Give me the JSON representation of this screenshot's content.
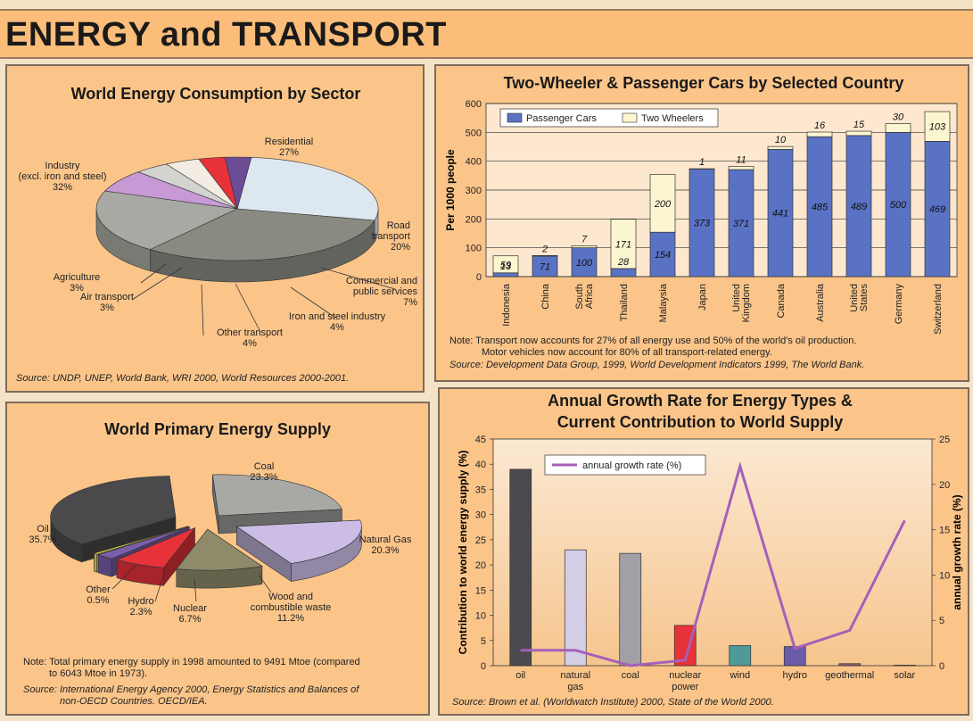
{
  "page": {
    "title": "ENERGY and TRANSPORT"
  },
  "panel_consumption": {
    "title": "World Energy Consumption by Sector",
    "source": "Source: UNDP, UNEP, World Bank, WRI 2000, World Resources 2000-2001.",
    "labels": [
      {
        "key": "residential",
        "lines": [
          "Residential",
          "27%"
        ]
      },
      {
        "key": "industry",
        "lines": [
          "Industry",
          "(excl. iron and steel)",
          "32%"
        ]
      },
      {
        "key": "road",
        "lines": [
          "Road",
          "transport",
          "20%"
        ]
      },
      {
        "key": "commercial",
        "lines": [
          "Commercial and",
          "public services",
          "7%"
        ]
      },
      {
        "key": "iron",
        "lines": [
          "Iron and steel industry",
          "4%"
        ]
      },
      {
        "key": "other-transport",
        "lines": [
          "Other transport",
          "4%"
        ]
      },
      {
        "key": "air",
        "lines": [
          "Air transport",
          "3%"
        ]
      },
      {
        "key": "agriculture",
        "lines": [
          "Agriculture",
          "3%"
        ]
      }
    ]
  },
  "panel_cars": {
    "title": "Two-Wheeler & Passenger Cars by Selected Country",
    "note1": "Note: Transport now accounts for 27% of all energy use and 50% of the world's oil production.",
    "note2": "Motor vehicles now account for 80% of all transport-related energy.",
    "source": "Source: Development Data Group, 1999, World Development Indicators 1999, The World Bank."
  },
  "panel_supply": {
    "title": "World Primary Energy Supply",
    "note1": "Note: Total primary energy supply in 1998 amounted to 9491 Mtoe (compared",
    "note2": "to 6043 Mtoe in 1973).",
    "source1": "Source: International Energy Agency 2000, Energy Statistics and Balances of",
    "source2": "non-OECD Countries. OECD/IEA.",
    "labels": [
      {
        "key": "coal",
        "lines": [
          "Coal",
          "23.3%"
        ]
      },
      {
        "key": "oil",
        "lines": [
          "Oil",
          "35.7%"
        ]
      },
      {
        "key": "natural-gas",
        "lines": [
          "Natural Gas",
          "20.3%"
        ]
      },
      {
        "key": "wood",
        "lines": [
          "Wood and",
          "combustible waste",
          "11.2%"
        ]
      },
      {
        "key": "nuclear",
        "lines": [
          "Nuclear",
          "6.7%"
        ]
      },
      {
        "key": "hydro",
        "lines": [
          "Hydro",
          "2.3%"
        ]
      },
      {
        "key": "other",
        "lines": [
          "Other",
          "0.5%"
        ]
      }
    ]
  },
  "panel_growth": {
    "title_line1": "Annual Growth Rate for Energy Types &",
    "title_line2": "Current Contribution to World Supply",
    "source": "Source: Brown et al. (Worldwatch Institute) 2000, State of the World 2000."
  },
  "chart_data": [
    {
      "type": "pie",
      "title": "World Energy Consumption by Sector",
      "categories": [
        "Residential",
        "Industry (excl. iron and steel)",
        "Road transport",
        "Commercial and public services",
        "Iron and steel industry",
        "Other transport",
        "Air transport",
        "Agriculture"
      ],
      "values": [
        27,
        32,
        20,
        7,
        4,
        4,
        3,
        3
      ],
      "colors": {
        "Residential": "#dde7f0",
        "Industry (excl. iron and steel)": "#8a8a82",
        "Road transport": "#a9a9a3",
        "Commercial and public services": "#c79ad6",
        "Iron and steel industry": "#d3d3d0",
        "Other transport": "#f2ece2",
        "Air transport": "#e8323a",
        "Agriculture": "#6a4c95"
      }
    },
    {
      "type": "bar",
      "title": "Two-Wheeler & Passenger Cars by Selected Country",
      "categories": [
        "Indonesia",
        "China",
        "South Africa",
        "Thailand",
        "Malaysia",
        "Japan",
        "United Kingdom",
        "Canada",
        "Australia",
        "United States",
        "Germany",
        "Switzerland"
      ],
      "series": [
        {
          "name": "Passenger Cars",
          "values": [
            13,
            71,
            100,
            28,
            154,
            373,
            371,
            441,
            485,
            489,
            500,
            469
          ],
          "color": "#5a72c4"
        },
        {
          "name": "Two Wheelers",
          "values": [
            59,
            2,
            7,
            171,
            200,
            1,
            11,
            10,
            16,
            15,
            30,
            103
          ],
          "color": "#fbf6cf"
        }
      ],
      "stacked": true,
      "ylabel": "Per 1000 people",
      "ylim": [
        0,
        600
      ],
      "yticks": [
        0,
        100,
        200,
        300,
        400,
        500,
        600
      ],
      "grid": true,
      "legend": "top-left"
    },
    {
      "type": "pie",
      "title": "World Primary Energy Supply",
      "categories": [
        "Coal",
        "Natural Gas",
        "Wood and combustible waste",
        "Nuclear",
        "Hydro",
        "Other",
        "Oil"
      ],
      "values": [
        23.3,
        20.3,
        11.2,
        6.7,
        2.3,
        0.5,
        35.7
      ],
      "colors": {
        "Coal": "#a8a8a5",
        "Natural Gas": "#cbbde6",
        "Wood and combustible waste": "#8e8a6a",
        "Nuclear": "#e8323a",
        "Hydro": "#7a5eaa",
        "Other": "#f1e64a",
        "Oil": "#4a4a4c"
      }
    },
    {
      "type": "bar",
      "title": "Annual Growth Rate for Energy Types & Current Contribution to World Supply",
      "categories": [
        "oil",
        "natural gas",
        "coal",
        "nuclear power",
        "wind",
        "hydro",
        "geothermal",
        "solar"
      ],
      "series": [
        {
          "name": "Contribution to world energy supply (%)",
          "values": [
            39,
            23,
            22.3,
            8,
            4,
            3.8,
            0.4,
            0.1
          ],
          "colors": [
            "#4a4a4e",
            "#d4cde6",
            "#a0a0a6",
            "#e8323a",
            "#4f9a96",
            "#6a5aa8",
            "#8a5e66",
            "#c2c2c6"
          ]
        },
        {
          "name": "annual growth rate (%)",
          "type": "line",
          "axis": "right",
          "values": [
            1.7,
            1.7,
            -0.1,
            0.6,
            22,
            1.9,
            3.9,
            16
          ],
          "color": "#a560b8"
        }
      ],
      "ylabel": "Contribution to world energy supply (%)",
      "ylim": [
        0,
        45
      ],
      "yticks": [
        0,
        5,
        10,
        15,
        20,
        25,
        30,
        35,
        40,
        45
      ],
      "y2label": "annual growth rate (%)",
      "y2lim": [
        0,
        25
      ],
      "y2ticks": [
        0,
        5,
        10,
        15,
        20,
        25
      ],
      "legend": "top-left"
    }
  ]
}
